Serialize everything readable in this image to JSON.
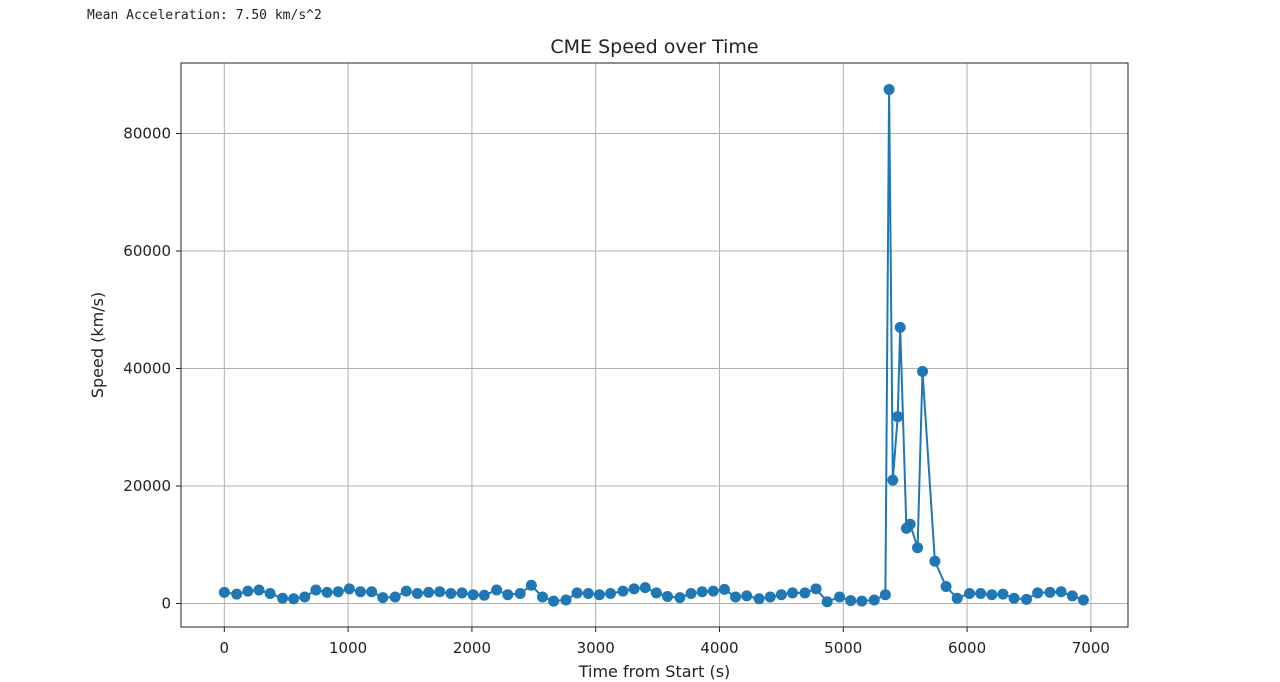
{
  "output": {
    "text": "Mean Acceleration: 7.50 km/s^2"
  },
  "chart_data": {
    "type": "line",
    "title": "CME Speed over Time",
    "xlabel": "Time from Start (s)",
    "ylabel": "Speed (km/s)",
    "xlim": [
      -350,
      7300
    ],
    "ylim": [
      -4000,
      92000
    ],
    "xticks": [
      0,
      1000,
      2000,
      3000,
      4000,
      5000,
      6000,
      7000
    ],
    "yticks": [
      0,
      20000,
      40000,
      60000,
      80000
    ],
    "grid": true,
    "series_color": "#1f77b4",
    "series": [
      {
        "x": [
          0,
          100,
          190,
          280,
          370,
          470,
          560,
          650,
          740,
          830,
          920,
          1010,
          1100,
          1190,
          1280,
          1380,
          1470,
          1560,
          1650,
          1740,
          1830,
          1920,
          2010,
          2100,
          2200,
          2290,
          2390,
          2480,
          2570,
          2660,
          2760,
          2850,
          2940,
          3030,
          3120,
          3220,
          3310,
          3400,
          3490,
          3580,
          3680,
          3770,
          3860,
          3950,
          4040,
          4130,
          4220,
          4320,
          4410,
          4500,
          4590,
          4690,
          4780,
          4870,
          4970,
          5060,
          5150,
          5250,
          5340,
          5370,
          5400,
          5440,
          5460,
          5510,
          5540,
          5600,
          5640,
          5740,
          5830,
          5920,
          6020,
          6110,
          6200,
          6290,
          6380,
          6480,
          6570,
          6670,
          6760,
          6850,
          6940
        ],
        "y": [
          1900,
          1600,
          2100,
          2300,
          1700,
          900,
          800,
          1100,
          2300,
          1900,
          2000,
          2500,
          2000,
          2000,
          1000,
          1100,
          2100,
          1700,
          1900,
          2000,
          1700,
          1800,
          1500,
          1400,
          2300,
          1500,
          1700,
          3100,
          1100,
          400,
          600,
          1800,
          1700,
          1500,
          1700,
          2100,
          2500,
          2700,
          1800,
          1200,
          1000,
          1700,
          2000,
          2100,
          2400,
          1100,
          1300,
          800,
          1100,
          1500,
          1800,
          1800,
          2500,
          300,
          1100,
          500,
          400,
          600,
          1500,
          87500,
          21000,
          31800,
          47000,
          12800,
          13500,
          9500,
          39500,
          7200,
          2900,
          900,
          1700,
          1700,
          1500,
          1600,
          900,
          700,
          1800,
          1900,
          2000,
          1300,
          600
        ]
      }
    ]
  }
}
